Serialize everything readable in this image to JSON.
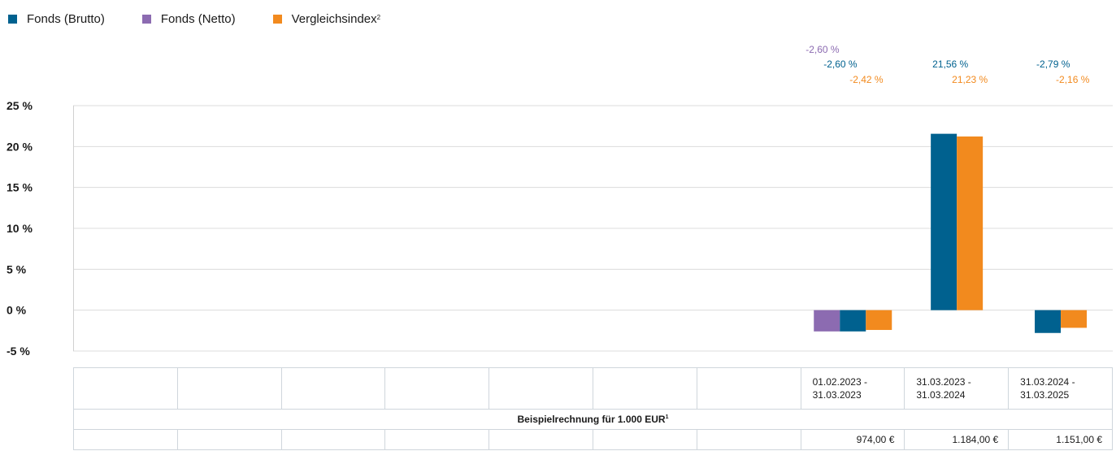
{
  "colors": {
    "brutto": "#00618f",
    "netto": "#8c6bb1",
    "index": "#f28a1e",
    "grid": "#dcdcdc"
  },
  "legend": [
    {
      "key": "brutto",
      "label": "Fonds (Brutto)",
      "sup": ""
    },
    {
      "key": "netto",
      "label": "Fonds (Netto)",
      "sup": ""
    },
    {
      "key": "index",
      "label": "Vergleichsindex",
      "sup": "2"
    }
  ],
  "chart_data": {
    "type": "bar",
    "ylim": [
      -5,
      25
    ],
    "yticks": [
      25,
      20,
      15,
      10,
      5,
      0,
      -5
    ],
    "ytick_labels": [
      "25 %",
      "20 %",
      "15 %",
      "10 %",
      "5 %",
      "0 %",
      "-5 %"
    ],
    "grid": true,
    "legend_position": "top-left",
    "categories": [
      "",
      "",
      "",
      "",
      "",
      "",
      "",
      "01.02.2023 - 31.03.2023",
      "31.03.2023 - 31.03.2024",
      "31.03.2024 - 31.03.2025"
    ],
    "series": [
      {
        "key": "netto",
        "name": "Fonds (Netto)",
        "values": [
          null,
          null,
          null,
          null,
          null,
          null,
          null,
          -2.6,
          null,
          null
        ],
        "labels": [
          "",
          "",
          "",
          "",
          "",
          "",
          "",
          "-2,60 %",
          "",
          ""
        ]
      },
      {
        "key": "brutto",
        "name": "Fonds (Brutto)",
        "values": [
          null,
          null,
          null,
          null,
          null,
          null,
          null,
          -2.6,
          21.56,
          -2.79
        ],
        "labels": [
          "",
          "",
          "",
          "",
          "",
          "",
          "",
          "-2,60 %",
          "21,56 %",
          "-2,79 %"
        ]
      },
      {
        "key": "index",
        "name": "Vergleichsindex",
        "values": [
          null,
          null,
          null,
          null,
          null,
          null,
          null,
          -2.42,
          21.23,
          -2.16
        ],
        "labels": [
          "",
          "",
          "",
          "",
          "",
          "",
          "",
          "-2,42 %",
          "21,23 %",
          "-2,16 %"
        ]
      }
    ]
  },
  "table": {
    "periods": [
      [
        "",
        ""
      ],
      [
        "",
        ""
      ],
      [
        "",
        ""
      ],
      [
        "",
        ""
      ],
      [
        "",
        ""
      ],
      [
        "",
        ""
      ],
      [
        "",
        ""
      ],
      [
        "01.02.2023 -",
        "31.03.2023"
      ],
      [
        "31.03.2023 -",
        "31.03.2024"
      ],
      [
        "31.03.2024 -",
        "31.03.2025"
      ]
    ],
    "caption": "Beispielrechnung für 1.000 EUR",
    "caption_sup": "1",
    "values": [
      "",
      "",
      "",
      "",
      "",
      "",
      "",
      "974,00 €",
      "1.184,00 €",
      "1.151,00 €"
    ]
  }
}
